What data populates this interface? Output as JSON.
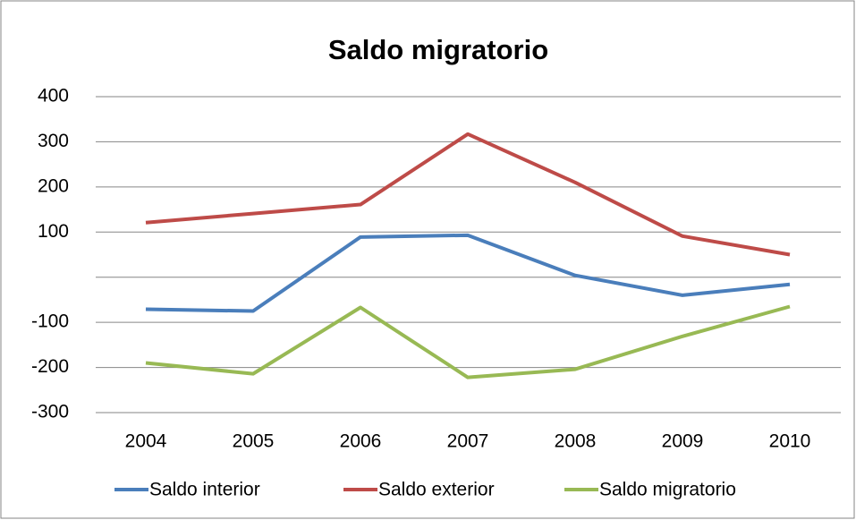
{
  "chart_data": {
    "type": "line",
    "title": "Saldo migratorio",
    "categories": [
      "2004",
      "2005",
      "2006",
      "2007",
      "2008",
      "2009",
      "2010"
    ],
    "series": [
      {
        "name": "Saldo interior",
        "color": "#4a7ebb",
        "values": [
          -71,
          -75,
          89,
          93,
          4,
          -40,
          -16
        ]
      },
      {
        "name": "Saldo exterior",
        "color": "#be4b48",
        "values": [
          121,
          141,
          161,
          317,
          210,
          91,
          50
        ]
      },
      {
        "name": "Saldo migratorio",
        "color": "#98b954",
        "values": [
          -190,
          -214,
          -67,
          -222,
          -204,
          -131,
          -65
        ]
      }
    ],
    "ylim": [
      -300,
      400
    ],
    "yticks": [
      -300,
      -200,
      -100,
      {
        "value": 0,
        "label": null
      },
      100,
      200,
      300,
      400
    ],
    "grid": true,
    "legend": "bottom"
  }
}
